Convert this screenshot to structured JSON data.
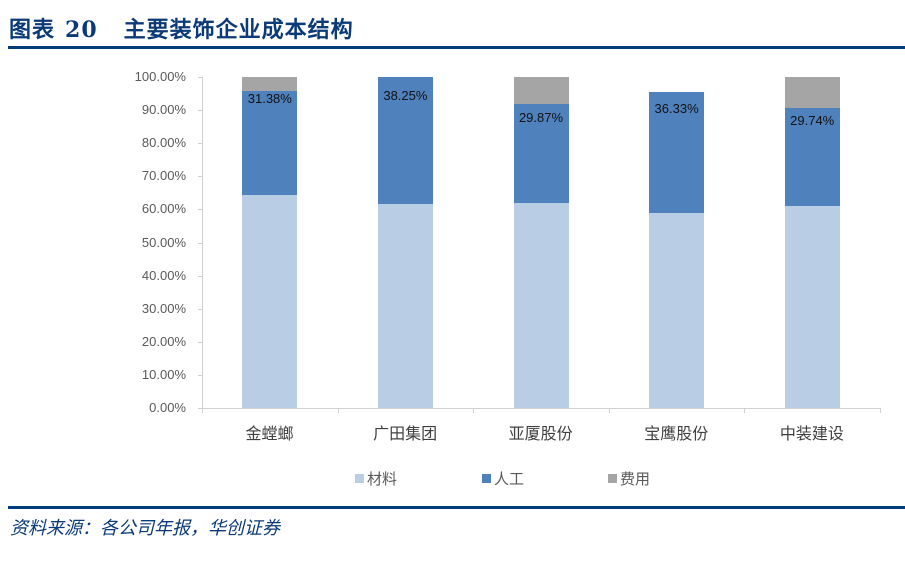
{
  "header": {
    "figure_label": "图表",
    "figure_number": "20",
    "title": "主要装饰企业成本结构"
  },
  "source": "资料来源：各公司年报，华创证券",
  "colors": {
    "material": "#b9cde5",
    "labor": "#4f81bd",
    "expense": "#a5a5a5",
    "rule": "#003b7b",
    "title": "#0b3a78"
  },
  "chart_data": {
    "type": "bar",
    "stacked": true,
    "title": "主要装饰企业成本结构",
    "xlabel": "",
    "ylabel": "",
    "ylim": [
      0,
      100
    ],
    "yticks": [
      "0.00%",
      "10.00%",
      "20.00%",
      "30.00%",
      "40.00%",
      "50.00%",
      "60.00%",
      "70.00%",
      "80.00%",
      "90.00%",
      "100.00%"
    ],
    "categories": [
      "金螳螂",
      "广田集团",
      "亚厦股份",
      "宝鹰股份",
      "中装建设"
    ],
    "series": [
      {
        "name": "材料",
        "color": "#b9cde5",
        "values": [
          64.4,
          61.75,
          61.9,
          59.0,
          61.0
        ]
      },
      {
        "name": "人工",
        "color": "#4f81bd",
        "values": [
          31.38,
          38.25,
          29.87,
          36.33,
          29.74
        ],
        "labels": [
          "31.38%",
          "38.25%",
          "29.87%",
          "36.33%",
          "29.74%"
        ]
      },
      {
        "name": "费用",
        "color": "#a5a5a5",
        "values": [
          4.22,
          0,
          8.23,
          0,
          9.26
        ]
      }
    ],
    "legend_position": "bottom",
    "grid": false
  }
}
